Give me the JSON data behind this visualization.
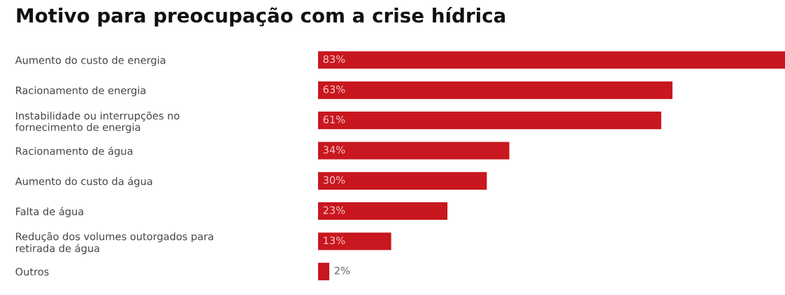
{
  "chart_data": {
    "type": "bar",
    "orientation": "horizontal",
    "title": "Motivo para preocupação com a crise hídrica",
    "categories": [
      "Aumento do custo de energia",
      "Racionamento de energia",
      "Instabilidade ou interrupções no\nfornecimento de energia",
      "Racionamento de água",
      "Aumento do custo da água",
      "Falta de água",
      "Redução dos volumes outorgados para\nretirada de água",
      "Outros"
    ],
    "values": [
      83,
      63,
      61,
      34,
      30,
      23,
      13,
      2
    ],
    "value_labels": [
      "83%",
      "63%",
      "61%",
      "34%",
      "30%",
      "23%",
      "13%",
      "2%"
    ],
    "color": "#c8171e",
    "grid": false,
    "legend": false,
    "tick_labels": "y"
  }
}
